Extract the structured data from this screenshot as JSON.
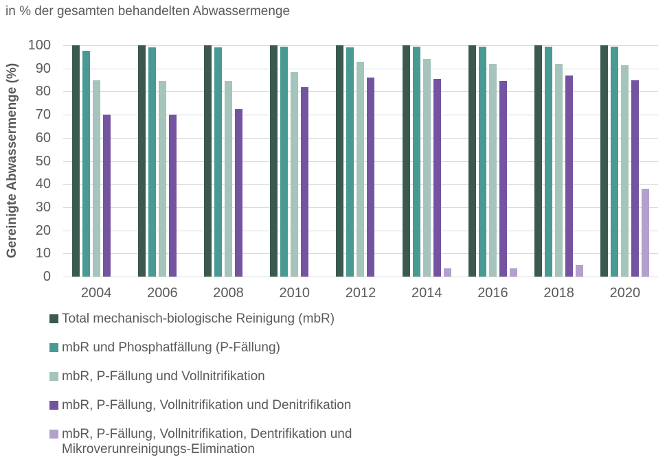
{
  "title": "in % der gesamten behandelten Abwassermenge",
  "colors": {
    "text": "#595959",
    "gridline": "#d9d9d9",
    "background": "#ffffff"
  },
  "chart_data": {
    "type": "bar",
    "title": "in % der gesamten behandelten Abwassermenge",
    "xlabel": "",
    "ylabel": "Gereinigte Abwassermenge (%)",
    "ylim": [
      0,
      100
    ],
    "yticks": [
      0,
      10,
      20,
      30,
      40,
      50,
      60,
      70,
      80,
      90,
      100
    ],
    "grid": true,
    "legend_position": "bottom-left",
    "categories": [
      "2004",
      "2006",
      "2008",
      "2010",
      "2012",
      "2014",
      "2016",
      "2018",
      "2020"
    ],
    "series": [
      {
        "name": "Total mechanisch-biologische Reinigung (mbR)",
        "color": "#3b594f",
        "values": [
          100,
          100,
          100,
          100,
          100,
          100,
          100,
          100,
          100
        ]
      },
      {
        "name": "mbR und Phosphatfällung (P-Fällung)",
        "color": "#499a92",
        "values": [
          97.5,
          99,
          99,
          99.5,
          99,
          99.5,
          99.5,
          99.5,
          99.5
        ]
      },
      {
        "name": "mbR, P-Fällung und Vollnitrifikation",
        "color": "#a5c4bb",
        "values": [
          85,
          84.5,
          84.5,
          88.5,
          93,
          94,
          92,
          92,
          91.5
        ]
      },
      {
        "name": "mbR, P-Fällung, Vollnitrifikation und Denitrifikation",
        "color": "#7453a1",
        "values": [
          70,
          70,
          72.5,
          82,
          86,
          85.5,
          84.5,
          87,
          85
        ]
      },
      {
        "name": "mbR, P-Fällung, Vollnitrifikation, Dentrifikation und Mikroverunreinigungs-Elimination",
        "color": "#b3a0cc",
        "values": [
          0,
          0,
          0,
          0,
          0,
          3.5,
          3.5,
          5,
          38
        ]
      }
    ]
  }
}
